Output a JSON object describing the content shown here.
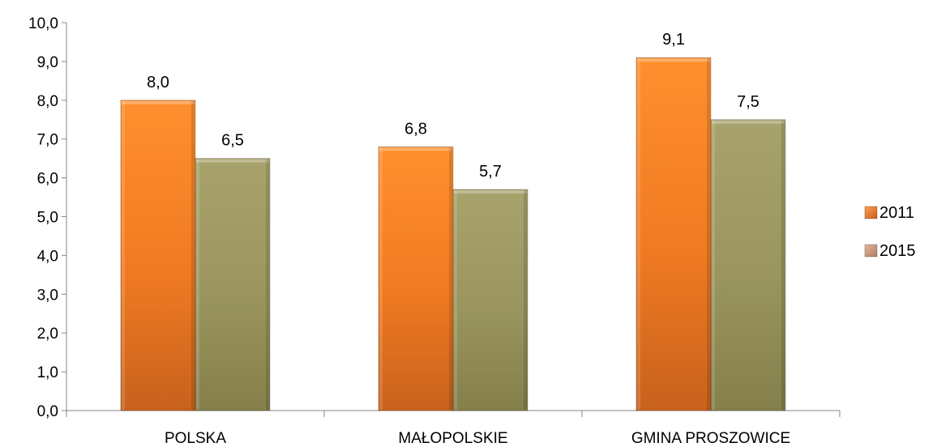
{
  "chart_data": {
    "type": "bar",
    "title": "",
    "xlabel": "",
    "ylabel": "",
    "categories": [
      "POLSKA",
      "MAŁOPOLSKIE",
      "GMINA PROSZOWICE"
    ],
    "series": [
      {
        "name": "2011",
        "values": [
          8.0,
          6.8,
          9.1
        ],
        "labels": [
          "8,0",
          "6,8",
          "9,1"
        ],
        "color": "#F0771F"
      },
      {
        "name": "2015",
        "values": [
          6.5,
          5.7,
          7.5
        ],
        "labels": [
          "6,5",
          "5,7",
          "7,5"
        ],
        "color": "#9B9760"
      }
    ],
    "ylim": [
      0,
      10
    ],
    "yticks": [
      "0,0",
      "1,0",
      "2,0",
      "3,0",
      "4,0",
      "5,0",
      "6,0",
      "7,0",
      "8,0",
      "9,0",
      "10,0"
    ],
    "grid": false,
    "legend_position": "right"
  }
}
